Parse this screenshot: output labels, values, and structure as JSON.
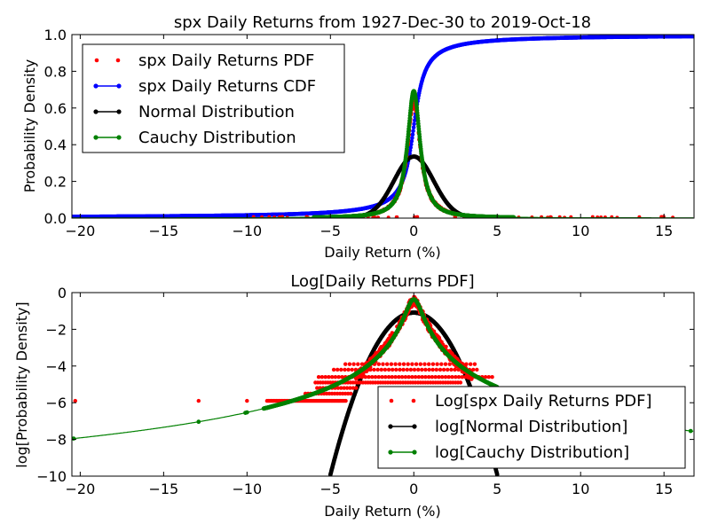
{
  "chart_data": [
    {
      "type": "line",
      "title": "spx Daily Returns from 1927-Dec-30 to 2019-Oct-18",
      "xlabel": "Daily Return (%)",
      "ylabel": "Probability Density",
      "xlim": [
        -20.5,
        16.8
      ],
      "ylim": [
        0.0,
        1.0
      ],
      "xticks": [
        -20,
        -15,
        -10,
        -5,
        0,
        5,
        10,
        15
      ],
      "xtick_labels": [
        "−20",
        "−15",
        "−10",
        "−5",
        "0",
        "5",
        "10",
        "15"
      ],
      "yticks": [
        0.0,
        0.2,
        0.4,
        0.6,
        0.8,
        1.0
      ],
      "ytick_labels": [
        "0.0",
        "0.2",
        "0.4",
        "0.6",
        "0.8",
        "1.0"
      ],
      "legend_position": "top-left",
      "grid": false,
      "series": [
        {
          "name": "spx Daily Returns PDF",
          "color": "#ff0000",
          "style": "dots"
        },
        {
          "name": "spx Daily Returns CDF",
          "color": "#0000ff",
          "style": "line-markers"
        },
        {
          "name": "Normal Distribution",
          "color": "#000000",
          "style": "line-markers"
        },
        {
          "name": "Cauchy Distribution",
          "color": "#008000",
          "style": "line-markers"
        }
      ]
    },
    {
      "type": "line",
      "title": "Log[Daily Returns PDF]",
      "xlabel": "Daily Return (%)",
      "ylabel": "log[Probability Density]",
      "xlim": [
        -20.5,
        16.8
      ],
      "ylim": [
        -10,
        0
      ],
      "xticks": [
        -20,
        -15,
        -10,
        -5,
        0,
        5,
        10,
        15
      ],
      "xtick_labels": [
        "−20",
        "−15",
        "−10",
        "−5",
        "0",
        "5",
        "10",
        "15"
      ],
      "yticks": [
        -10,
        -8,
        -6,
        -4,
        -2,
        0
      ],
      "ytick_labels": [
        "−10",
        "−8",
        "−6",
        "−4",
        "−2",
        "0"
      ],
      "legend_position": "bottom-right",
      "grid": false,
      "series": [
        {
          "name": "Log[spx Daily Returns PDF]",
          "color": "#ff0000",
          "style": "dots"
        },
        {
          "name": "log[Normal Distribution]",
          "color": "#000000",
          "style": "line-markers"
        },
        {
          "name": "log[Cauchy Distribution]",
          "color": "#008000",
          "style": "line-markers"
        }
      ]
    }
  ]
}
